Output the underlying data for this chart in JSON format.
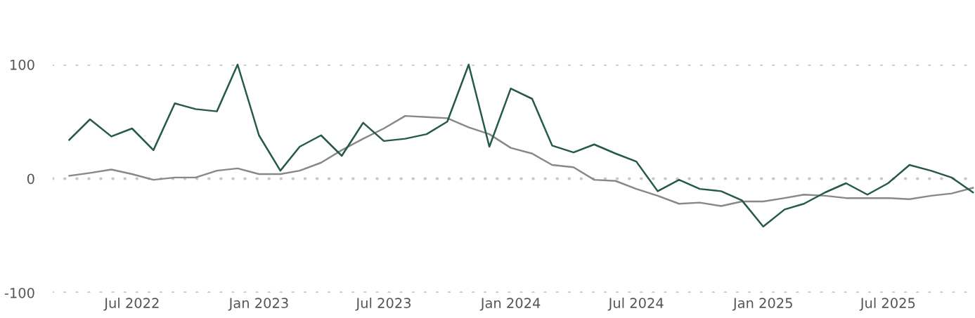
{
  "chart_data": {
    "type": "line",
    "x": [
      "2022-04",
      "2022-05",
      "2022-06",
      "2022-07",
      "2022-08",
      "2022-09",
      "2022-10",
      "2022-11",
      "2022-12",
      "2023-01",
      "2023-02",
      "2023-03",
      "2023-04",
      "2023-05",
      "2023-06",
      "2023-07",
      "2023-08",
      "2023-09",
      "2023-10",
      "2023-11",
      "2023-12",
      "2024-01",
      "2024-02",
      "2024-03",
      "2024-04",
      "2024-05",
      "2024-06",
      "2024-07",
      "2024-08",
      "2024-09",
      "2024-10",
      "2024-11",
      "2024-12",
      "2025-01",
      "2025-02",
      "2025-03",
      "2025-04",
      "2025-05",
      "2025-06",
      "2025-07",
      "2025-08",
      "2025-09",
      "2025-10",
      "2025-11"
    ],
    "series": [
      {
        "color": "#245a47",
        "values": [
          34,
          52,
          37,
          44,
          25,
          66,
          61,
          59,
          100,
          38,
          7,
          28,
          38,
          20,
          49,
          33,
          35,
          39,
          50,
          100,
          28,
          79,
          70,
          29,
          23,
          30,
          22,
          15,
          -11,
          -1,
          -9,
          -11,
          -19,
          -42,
          -27,
          -22,
          -12,
          -4,
          -14,
          -4,
          12,
          7,
          1,
          -12
        ]
      },
      {
        "color": "#888888",
        "values": [
          2.5,
          5,
          8,
          4,
          -1,
          1,
          1,
          7,
          9,
          4,
          4,
          7,
          14,
          25,
          35,
          44,
          55,
          54,
          53,
          45,
          39,
          27,
          22,
          12,
          10,
          -1,
          -2,
          -9,
          -15,
          -22,
          -21,
          -24,
          -20,
          -20,
          -17,
          -14,
          -15,
          -17,
          -17,
          -17,
          -18,
          -15,
          -13,
          -8
        ]
      }
    ],
    "xlim": [
      "2022-03-08",
      "2025-11-04"
    ],
    "xticks": [
      {
        "value": "2022-07-01",
        "label": "Jul 2022"
      },
      {
        "value": "2023-01-01",
        "label": "Jan 2023"
      },
      {
        "value": "2023-07-01",
        "label": "Jul 2023"
      },
      {
        "value": "2024-01-01",
        "label": "Jan 2024"
      },
      {
        "value": "2024-07-01",
        "label": "Jul 2024"
      },
      {
        "value": "2025-01-01",
        "label": "Jan 2025"
      },
      {
        "value": "2025-07-01",
        "label": "Jul 2025"
      }
    ],
    "ylim": [
      -100,
      100
    ],
    "yticks": [
      {
        "value": -100,
        "label": "-100"
      },
      0,
      100
    ],
    "grid": "y",
    "marker": "none",
    "line_style": "solid"
  }
}
